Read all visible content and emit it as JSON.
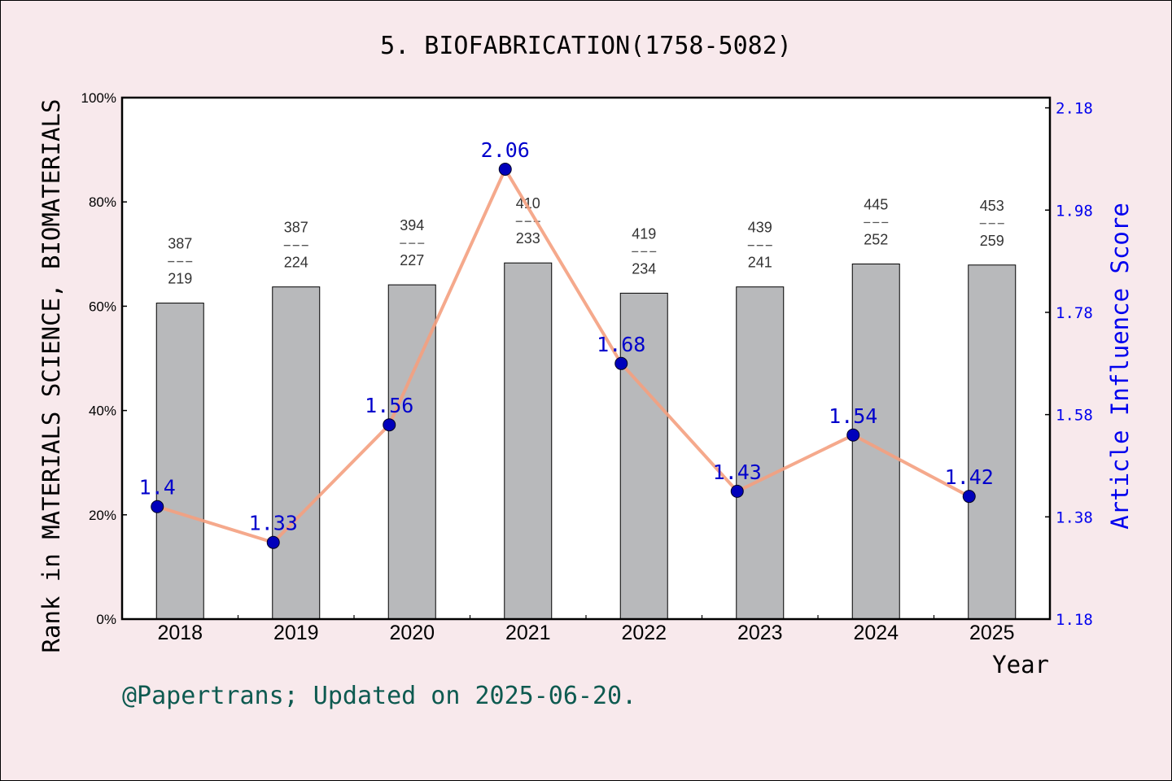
{
  "title": "5. BIOFABRICATION(1758-5082)",
  "footer": "@Papertrans; Updated on 2025-06-20.",
  "colors": {
    "background": "#f8e9ec",
    "bar": "#b8b9bb",
    "line": "#f4a080",
    "marker": "#0000bb",
    "right_axis": "#0000ee",
    "footer": "#0e5a50"
  },
  "chart_data": {
    "type": "bar",
    "title": "5. BIOFABRICATION(1758-5082)",
    "xlabel": "Year",
    "ylabel": "Rank in MATERIALS SCIENCE, BIOMATERIALS",
    "y2label": "Article Influence Score",
    "categories": [
      "2018",
      "2019",
      "2020",
      "2021",
      "2022",
      "2023",
      "2024",
      "2025"
    ],
    "ylim": [
      0,
      100
    ],
    "yticks": [
      "0%",
      "20%",
      "40%",
      "60%",
      "80%",
      "100%"
    ],
    "y2lim": [
      1.18,
      2.2
    ],
    "y2ticks": [
      "1.18",
      "1.38",
      "1.58",
      "1.78",
      "1.98",
      "2.18"
    ],
    "grid": false,
    "series": [
      {
        "kind": "bar",
        "values": [
          60.6,
          63.7,
          64.1,
          68.3,
          62.5,
          63.7,
          68.1,
          67.9
        ],
        "rank_labels": [
          {
            "total": "387",
            "rank": "219"
          },
          {
            "total": "387",
            "rank": "224"
          },
          {
            "total": "394",
            "rank": "227"
          },
          {
            "total": "410",
            "rank": "233"
          },
          {
            "total": "419",
            "rank": "234"
          },
          {
            "total": "439",
            "rank": "241"
          },
          {
            "total": "445",
            "rank": "252"
          },
          {
            "total": "453",
            "rank": "259"
          }
        ]
      },
      {
        "kind": "line",
        "axis": "right",
        "values": [
          1.4,
          1.33,
          1.56,
          2.06,
          1.68,
          1.43,
          1.54,
          1.42
        ],
        "labels": [
          "1.4",
          "1.33",
          "1.56",
          "2.06",
          "1.68",
          "1.43",
          "1.54",
          "1.42"
        ]
      }
    ]
  }
}
